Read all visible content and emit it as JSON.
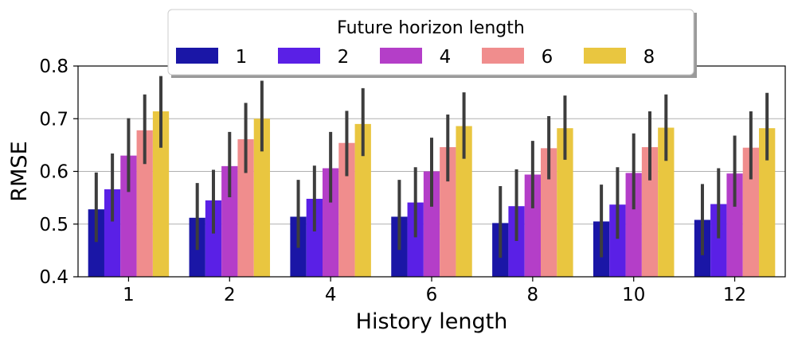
{
  "chart_data": {
    "type": "bar",
    "title": "",
    "xlabel": "History length",
    "ylabel": "RMSE",
    "ylim": [
      0.4,
      0.8
    ],
    "yticks": [
      "0.4",
      "0.5",
      "0.6",
      "0.7",
      "0.8"
    ],
    "grid": "horizontal",
    "legend_placement": "top-center",
    "legend_title": "Future horizon length",
    "categories": [
      "1",
      "2",
      "4",
      "6",
      "8",
      "10",
      "12"
    ],
    "series": [
      {
        "name": "1",
        "color": "#1a16a6",
        "values": [
          0.528,
          0.512,
          0.514,
          0.514,
          0.502,
          0.505,
          0.508
        ],
        "err_low": [
          0.466,
          0.451,
          0.455,
          0.451,
          0.436,
          0.437,
          0.441
        ],
        "err_high": [
          0.598,
          0.578,
          0.584,
          0.584,
          0.572,
          0.575,
          0.576
        ]
      },
      {
        "name": "2",
        "color": "#5a20e6",
        "values": [
          0.566,
          0.545,
          0.548,
          0.541,
          0.534,
          0.537,
          0.538
        ],
        "err_low": [
          0.505,
          0.482,
          0.486,
          0.475,
          0.468,
          0.472,
          0.473
        ],
        "err_high": [
          0.634,
          0.603,
          0.611,
          0.608,
          0.604,
          0.608,
          0.606
        ]
      },
      {
        "name": "4",
        "color": "#b43ec8",
        "values": [
          0.63,
          0.61,
          0.606,
          0.6,
          0.594,
          0.597,
          0.596
        ],
        "err_low": [
          0.561,
          0.551,
          0.541,
          0.533,
          0.53,
          0.528,
          0.533
        ],
        "err_high": [
          0.701,
          0.675,
          0.675,
          0.664,
          0.658,
          0.672,
          0.668
        ]
      },
      {
        "name": "6",
        "color": "#f08d8d",
        "values": [
          0.678,
          0.661,
          0.654,
          0.646,
          0.644,
          0.646,
          0.645
        ],
        "err_low": [
          0.614,
          0.597,
          0.591,
          0.581,
          0.585,
          0.583,
          0.585
        ],
        "err_high": [
          0.746,
          0.73,
          0.715,
          0.708,
          0.705,
          0.714,
          0.714
        ]
      },
      {
        "name": "8",
        "color": "#e9c640",
        "values": [
          0.714,
          0.7,
          0.69,
          0.686,
          0.682,
          0.683,
          0.682
        ],
        "err_low": [
          0.645,
          0.638,
          0.629,
          0.624,
          0.622,
          0.62,
          0.621
        ],
        "err_high": [
          0.781,
          0.772,
          0.758,
          0.75,
          0.744,
          0.746,
          0.749
        ]
      }
    ]
  }
}
